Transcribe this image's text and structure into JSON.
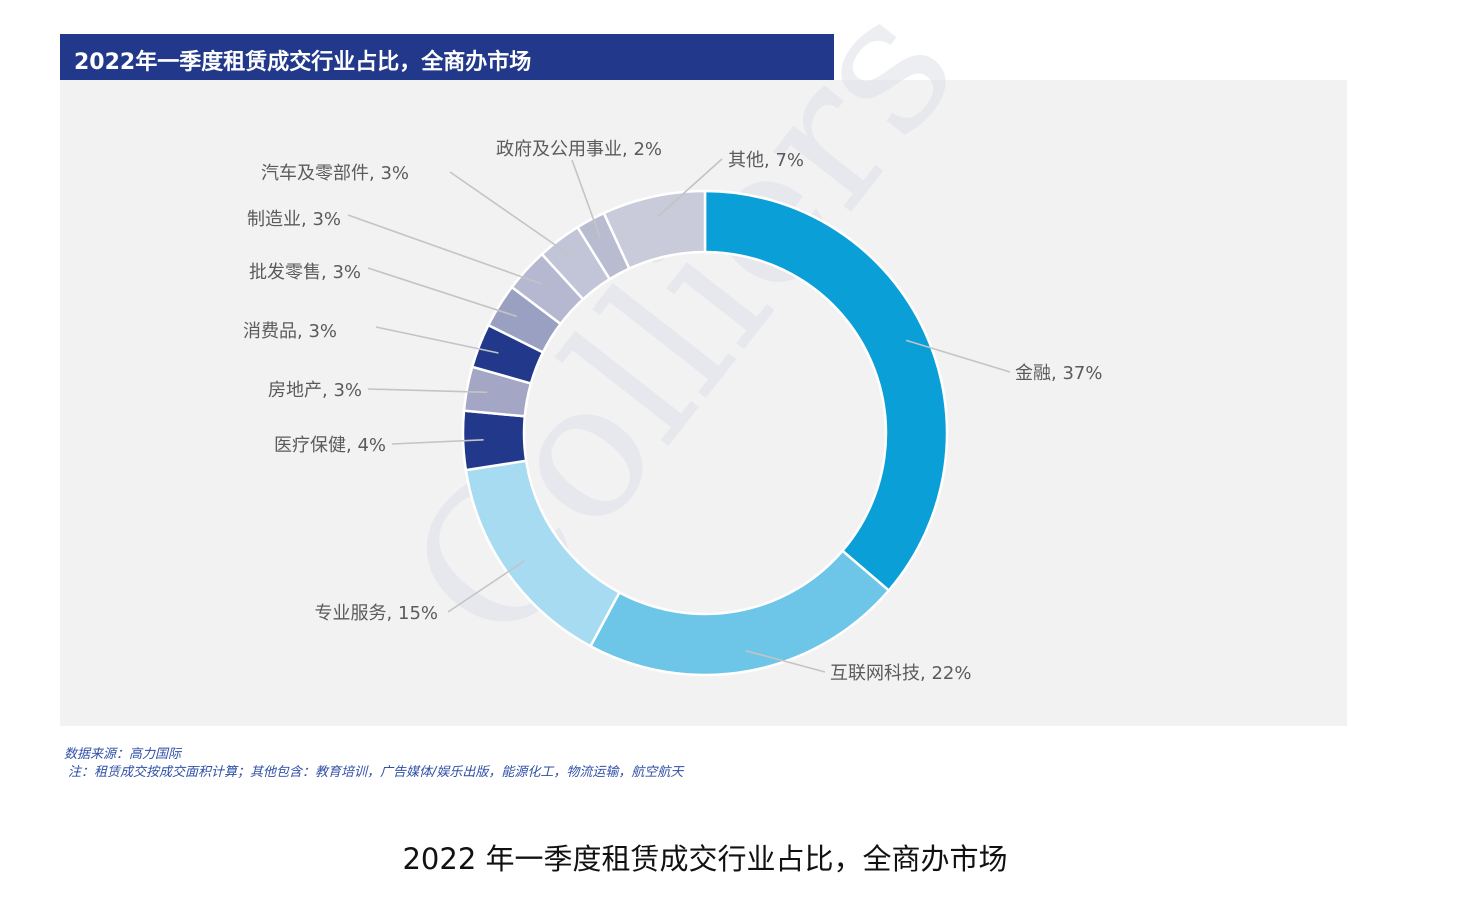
{
  "header": {
    "title": "2022年一季度租赁成交行业占比，全商办市场"
  },
  "watermark": "Colliers",
  "source": {
    "line1": "数据来源：高力国际",
    "line2": "注：租赁成交按成交面积计算；其他包含：教育培训，广告媒体/娱乐出版，能源化工，物流运输，航空航天"
  },
  "caption": "2022 年一季度租赁成交行业占比，全商办市场",
  "chart_data": {
    "type": "pie",
    "title": "2022年一季度租赁成交行业占比，全商办市场",
    "donut": true,
    "unit": "%",
    "slices": [
      {
        "label": "金融",
        "value": 37,
        "display": "金融, 37%",
        "color": "#0b9fd8"
      },
      {
        "label": "互联网科技",
        "value": 22,
        "display": "互联网科技, 22%",
        "color": "#6dc5e8"
      },
      {
        "label": "专业服务",
        "value": 15,
        "display": "专业服务, 15%",
        "color": "#a6dbf2"
      },
      {
        "label": "医疗保健",
        "value": 4,
        "display": "医疗保健, 4%",
        "color": "#22398b"
      },
      {
        "label": "房地产",
        "value": 3,
        "display": "房地产, 3%",
        "color": "#a3a7c5"
      },
      {
        "label": "消费品",
        "value": 3,
        "display": "消费品, 3%",
        "color": "#22398b"
      },
      {
        "label": "批发零售",
        "value": 3,
        "display": "批发零售, 3%",
        "color": "#9aa0c1"
      },
      {
        "label": "制造业",
        "value": 3,
        "display": "制造业, 3%",
        "color": "#b5b8d0"
      },
      {
        "label": "汽车及零部件",
        "value": 3,
        "display": "汽车及零部件, 3%",
        "color": "#c2c4d8"
      },
      {
        "label": "政府及公用事业",
        "value": 2,
        "display": "政府及公用事业, 2%",
        "color": "#b9bcd1"
      },
      {
        "label": "其他",
        "value": 7,
        "display": "其他, 7%",
        "color": "#c9cbdb"
      }
    ]
  }
}
